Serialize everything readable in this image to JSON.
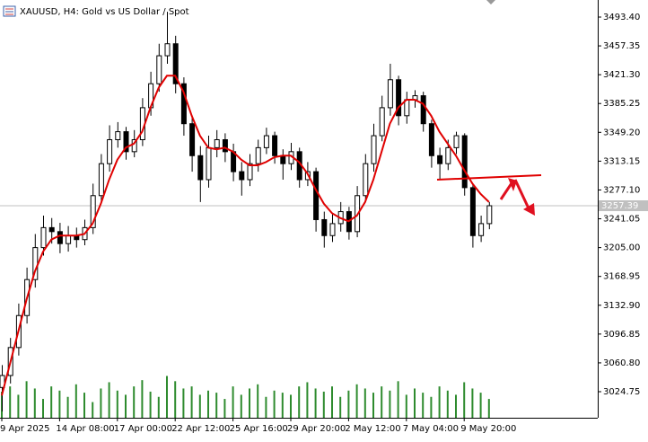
{
  "chart_data": {
    "type": "candlestick",
    "title": "XAUUSD, H4:  Gold vs US Dollar / Spot",
    "categories": [
      "9 Apr 2025",
      null,
      null,
      null,
      null,
      null,
      null,
      "14 Apr 08:00",
      null,
      null,
      null,
      null,
      null,
      null,
      "17 Apr 00:00",
      null,
      null,
      null,
      null,
      null,
      null,
      "22 Apr 12:00",
      null,
      null,
      null,
      null,
      null,
      null,
      "25 Apr 16:00",
      null,
      null,
      null,
      null,
      null,
      null,
      "29 Apr 20:00",
      null,
      null,
      null,
      null,
      null,
      null,
      "2 May 12:00",
      null,
      null,
      null,
      null,
      null,
      null,
      "7 May 04:00",
      null,
      null,
      null,
      null,
      null,
      null,
      "9 May 20:00",
      null,
      null,
      null
    ],
    "open": [
      3030,
      3045,
      3080,
      3120,
      3165,
      3205,
      3230,
      3225,
      3210,
      3220,
      3215,
      3230,
      3270,
      3310,
      3340,
      3350,
      3325,
      3340,
      3380,
      3410,
      3445,
      3460,
      3410,
      3360,
      3320,
      3290,
      3330,
      3340,
      3325,
      3300,
      3290,
      3310,
      3330,
      3345,
      3320,
      3310,
      3325,
      3290,
      3300,
      3240,
      3220,
      3235,
      3250,
      3225,
      3270,
      3310,
      3345,
      3380,
      3415,
      3370,
      3390,
      3395,
      3360,
      3320,
      3310,
      3330,
      3345,
      3280,
      3220,
      3235
    ],
    "high": [
      3058,
      3092,
      3135,
      3180,
      3222,
      3245,
      3242,
      3236,
      3232,
      3230,
      3240,
      3285,
      3322,
      3358,
      3362,
      3356,
      3352,
      3392,
      3425,
      3460,
      3500,
      3470,
      3418,
      3368,
      3332,
      3345,
      3352,
      3348,
      3335,
      3312,
      3322,
      3340,
      3355,
      3350,
      3328,
      3336,
      3330,
      3312,
      3305,
      3250,
      3248,
      3262,
      3256,
      3282,
      3322,
      3360,
      3395,
      3435,
      3420,
      3400,
      3402,
      3400,
      3365,
      3330,
      3340,
      3350,
      3348,
      3285,
      3245,
      3262
    ],
    "low": [
      3000,
      3035,
      3070,
      3110,
      3155,
      3195,
      3210,
      3198,
      3200,
      3205,
      3208,
      3222,
      3262,
      3300,
      3330,
      3315,
      3318,
      3332,
      3370,
      3400,
      3435,
      3398,
      3345,
      3300,
      3262,
      3280,
      3318,
      3312,
      3288,
      3270,
      3282,
      3300,
      3322,
      3310,
      3290,
      3302,
      3280,
      3282,
      3225,
      3205,
      3212,
      3225,
      3215,
      3218,
      3262,
      3300,
      3338,
      3370,
      3358,
      3360,
      3380,
      3350,
      3305,
      3290,
      3302,
      3322,
      3270,
      3205,
      3212,
      3228
    ],
    "close": [
      3045,
      3080,
      3120,
      3165,
      3205,
      3230,
      3225,
      3210,
      3220,
      3215,
      3230,
      3270,
      3310,
      3340,
      3350,
      3325,
      3340,
      3380,
      3410,
      3445,
      3460,
      3410,
      3360,
      3320,
      3290,
      3330,
      3340,
      3325,
      3300,
      3290,
      3310,
      3330,
      3345,
      3320,
      3310,
      3325,
      3290,
      3300,
      3240,
      3220,
      3235,
      3250,
      3225,
      3270,
      3310,
      3345,
      3380,
      3415,
      3370,
      3390,
      3395,
      3360,
      3320,
      3310,
      3330,
      3345,
      3280,
      3220,
      3235,
      3257.39
    ],
    "ma": [
      3020,
      3060,
      3100,
      3140,
      3175,
      3200,
      3215,
      3220,
      3220,
      3220,
      3222,
      3235,
      3260,
      3290,
      3315,
      3330,
      3335,
      3350,
      3380,
      3405,
      3420,
      3420,
      3400,
      3370,
      3345,
      3330,
      3328,
      3330,
      3325,
      3315,
      3308,
      3308,
      3312,
      3318,
      3320,
      3320,
      3312,
      3298,
      3278,
      3260,
      3248,
      3242,
      3238,
      3245,
      3262,
      3290,
      3325,
      3360,
      3380,
      3390,
      3390,
      3385,
      3370,
      3350,
      3335,
      3320,
      3302,
      3285,
      3272,
      3262
    ],
    "ma_color": "#e00000",
    "volume": [
      25,
      30,
      22,
      35,
      28,
      18,
      30,
      26,
      20,
      32,
      24,
      15,
      28,
      34,
      26,
      22,
      30,
      36,
      25,
      20,
      40,
      35,
      28,
      30,
      22,
      26,
      24,
      18,
      30,
      22,
      28,
      32,
      20,
      26,
      24,
      22,
      30,
      34,
      28,
      25,
      30,
      20,
      26,
      32,
      28,
      24,
      30,
      26,
      35,
      22,
      28,
      24,
      20,
      30,
      26,
      22,
      34,
      28,
      24,
      18
    ],
    "volume_color": "#2e8b2e",
    "volume_ylim": [
      0,
      400
    ],
    "ylim": [
      2992.16,
      3514.75
    ],
    "yticks": [
      {
        "value": 3493.4,
        "label": "3493.40"
      },
      {
        "value": 3457.35,
        "label": "3457.35"
      },
      {
        "value": 3421.3,
        "label": "3421.30"
      },
      {
        "value": 3385.25,
        "label": "3385.25"
      },
      {
        "value": 3349.2,
        "label": "3349.20"
      },
      {
        "value": 3313.15,
        "label": "3313.15"
      },
      {
        "value": 3277.1,
        "label": "3277.10"
      },
      {
        "value": 3241.05,
        "label": "3241.05"
      },
      {
        "value": 3205,
        "label": "3205.00"
      },
      {
        "value": 3168.95,
        "label": "3168.95"
      },
      {
        "value": 3132.9,
        "label": "3132.90"
      },
      {
        "value": 3096.85,
        "label": "3096.85"
      },
      {
        "value": 3060.8,
        "label": "3060.80"
      },
      {
        "value": 3024.75,
        "label": "3024.75"
      }
    ]
  }
}
